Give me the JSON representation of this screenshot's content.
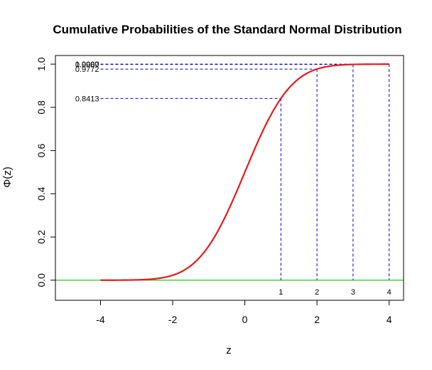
{
  "chart_data": {
    "type": "line",
    "title": "Cumulative Probabilities of the Standard Normal Distribution",
    "xlabel": "z",
    "ylabel": "Φ(z)",
    "xlim": [
      -5.25,
      4.4
    ],
    "ylim": [
      -0.093,
      1.04
    ],
    "xticks": [
      "-4",
      "-2",
      "0",
      "2",
      "4"
    ],
    "yticks": [
      "0.0",
      "0.2",
      "0.4",
      "0.6",
      "0.8",
      "1.0"
    ],
    "grid": false,
    "series": [
      {
        "x": [
          -4.0,
          -3.5,
          -3.0,
          -2.5,
          -2.0,
          -1.5,
          -1.0,
          -0.5,
          0.0,
          0.5,
          1.0,
          1.5,
          2.0,
          2.5,
          3.0,
          3.5,
          4.0
        ],
        "values": [
          3e-05,
          0.0002,
          0.0013,
          0.0062,
          0.0228,
          0.0668,
          0.1587,
          0.3085,
          0.5,
          0.6915,
          0.8413,
          0.9332,
          0.9772,
          0.9938,
          0.9987,
          0.9998,
          1.0
        ],
        "color": "#e41a1c"
      }
    ],
    "baseline": {
      "y": 0,
      "color": "#22cc22"
    },
    "reference_points": [
      {
        "z": 1,
        "p": 0.8413,
        "z_label": "1",
        "p_label": "0.8413"
      },
      {
        "z": 2,
        "p": 0.9772,
        "z_label": "2",
        "p_label": "0.9772"
      },
      {
        "z": 3,
        "p": 0.9987,
        "z_label": "3",
        "p_label": "0.9987"
      },
      {
        "z": 4,
        "p": 1.0,
        "z_label": "4",
        "p_label": "1.0000"
      }
    ],
    "reference_line_color": "#0000cc"
  }
}
